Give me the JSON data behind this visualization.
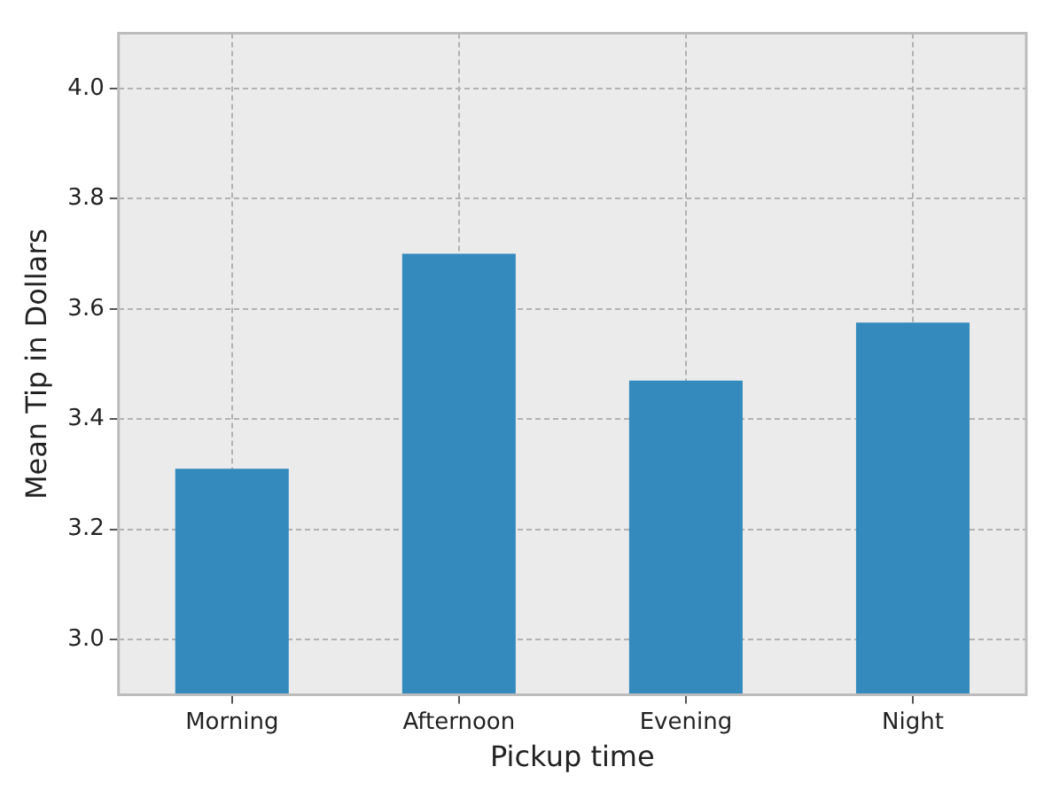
{
  "chart_data": {
    "type": "bar",
    "xlabel": "Pickup time",
    "ylabel": "Mean Tip in Dollars",
    "categories": [
      "Morning",
      "Afternoon",
      "Evening",
      "Night"
    ],
    "values": [
      3.31,
      3.7,
      3.47,
      3.575
    ],
    "color": "#348abd",
    "ylim": [
      2.9,
      4.1
    ],
    "yticks": [
      {
        "value": 3,
        "label": "3.0"
      },
      {
        "value": 3.2,
        "label": "3.2"
      },
      {
        "value": 3.4,
        "label": "3.4"
      },
      {
        "value": 3.6,
        "label": "3.6"
      },
      {
        "value": 3.8,
        "label": "3.8"
      },
      {
        "value": 4,
        "label": "4.0"
      }
    ],
    "grid": true
  }
}
